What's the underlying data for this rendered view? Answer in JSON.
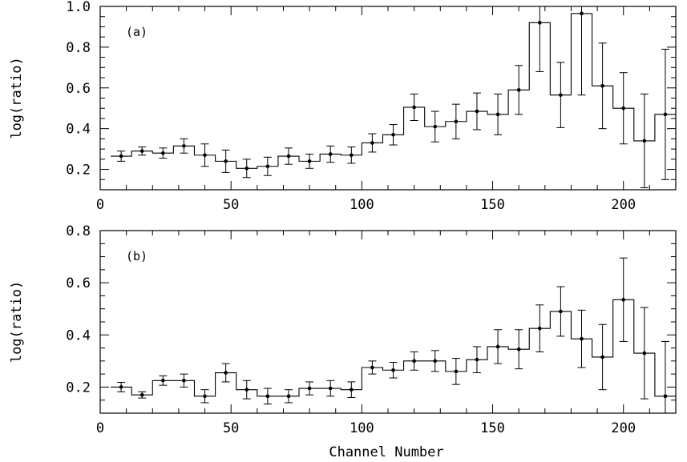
{
  "chart_data": [
    {
      "type": "line",
      "style": "step-with-errorbars",
      "panel_label": "(a)",
      "xlabel": "",
      "ylabel": "log(ratio)",
      "xlim": [
        0,
        220
      ],
      "ylim": [
        0.1,
        1.0
      ],
      "x_ticks": [
        0,
        50,
        100,
        150,
        200
      ],
      "y_ticks": [
        0.2,
        0.4,
        0.6,
        0.8,
        1.0
      ],
      "y_tick_labels": [
        "0.2",
        "0.4",
        "0.6",
        "0.8",
        "1.0"
      ],
      "bin_width": 8,
      "x": [
        8,
        16,
        24,
        32,
        40,
        48,
        56,
        64,
        72,
        80,
        88,
        96,
        104,
        112,
        120,
        128,
        136,
        144,
        152,
        160,
        168,
        176,
        184,
        192,
        200,
        208,
        216
      ],
      "y": [
        0.265,
        0.29,
        0.28,
        0.315,
        0.27,
        0.24,
        0.205,
        0.215,
        0.265,
        0.24,
        0.275,
        0.27,
        0.33,
        0.37,
        0.505,
        0.41,
        0.435,
        0.485,
        0.47,
        0.59,
        0.92,
        0.565,
        0.965,
        0.61,
        0.5,
        0.34,
        0.47
      ],
      "err": [
        0.025,
        0.02,
        0.025,
        0.035,
        0.055,
        0.055,
        0.045,
        0.045,
        0.04,
        0.035,
        0.04,
        0.04,
        0.045,
        0.05,
        0.065,
        0.075,
        0.085,
        0.09,
        0.1,
        0.12,
        0.24,
        0.16,
        0.4,
        0.21,
        0.175,
        0.23,
        0.32
      ]
    },
    {
      "type": "line",
      "style": "step-with-errorbars",
      "panel_label": "(b)",
      "xlabel": "Channel Number",
      "ylabel": "log(ratio)",
      "xlim": [
        0,
        220
      ],
      "ylim": [
        0.1,
        0.8
      ],
      "x_ticks": [
        0,
        50,
        100,
        150,
        200
      ],
      "y_ticks": [
        0.2,
        0.4,
        0.6,
        0.8
      ],
      "y_tick_labels": [
        "0.2",
        "0.4",
        "0.6",
        "0.8"
      ],
      "bin_width": 8,
      "x": [
        8,
        16,
        24,
        32,
        40,
        48,
        56,
        64,
        72,
        80,
        88,
        96,
        104,
        112,
        120,
        128,
        136,
        144,
        152,
        160,
        168,
        176,
        184,
        192,
        200,
        208,
        216
      ],
      "y": [
        0.2,
        0.17,
        0.225,
        0.225,
        0.165,
        0.255,
        0.19,
        0.165,
        0.165,
        0.195,
        0.195,
        0.19,
        0.275,
        0.265,
        0.3,
        0.3,
        0.26,
        0.305,
        0.355,
        0.345,
        0.425,
        0.49,
        0.385,
        0.315,
        0.535,
        0.33,
        0.165
      ],
      "err": [
        0.018,
        0.012,
        0.018,
        0.025,
        0.025,
        0.035,
        0.035,
        0.03,
        0.025,
        0.025,
        0.03,
        0.03,
        0.025,
        0.03,
        0.035,
        0.04,
        0.05,
        0.05,
        0.065,
        0.075,
        0.09,
        0.095,
        0.11,
        0.125,
        0.16,
        0.175,
        0.21
      ]
    }
  ]
}
